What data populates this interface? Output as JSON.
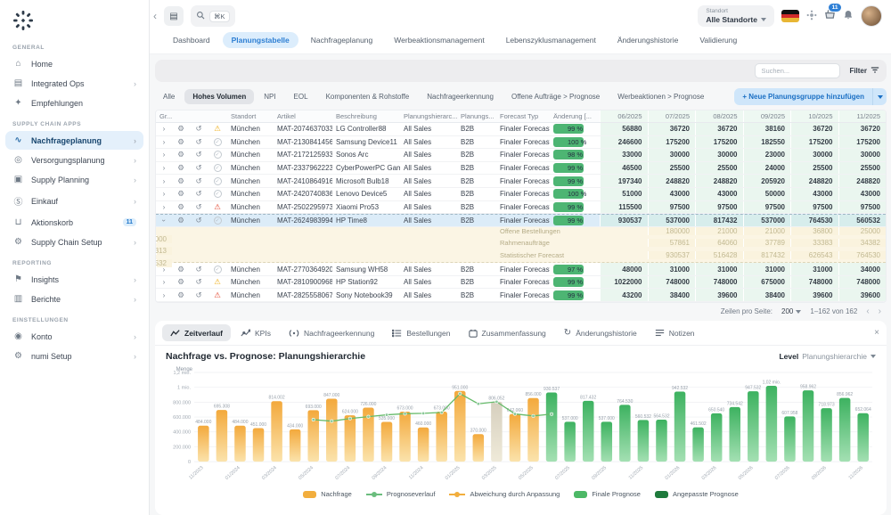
{
  "topbar": {
    "search_shortcut": "⌘K",
    "standort_label": "Standort",
    "standort_value": "Alle Standorte",
    "basket_badge": "11"
  },
  "nav_tabs": [
    {
      "label": "Dashboard",
      "active": false
    },
    {
      "label": "Planungstabelle",
      "active": true
    },
    {
      "label": "Nachfrageplanung",
      "active": false
    },
    {
      "label": "Werbeaktionsmanagement",
      "active": false
    },
    {
      "label": "Lebenszyklusmanagement",
      "active": false
    },
    {
      "label": "Änderungshistorie",
      "active": false
    },
    {
      "label": "Validierung",
      "active": false
    }
  ],
  "sidebar": {
    "sections": [
      {
        "title": "GENERAL",
        "items": [
          {
            "label": "Home",
            "icon": "home"
          },
          {
            "label": "Integrated Ops",
            "icon": "ops",
            "chevron": true
          },
          {
            "label": "Empfehlungen",
            "icon": "reco"
          }
        ]
      },
      {
        "title": "SUPPLY CHAIN APPS",
        "items": [
          {
            "label": "Nachfrageplanung",
            "icon": "demand",
            "chevron": true,
            "active": true
          },
          {
            "label": "Versorgungsplanung",
            "icon": "supply",
            "chevron": true
          },
          {
            "label": "Supply Planning",
            "icon": "planning",
            "chevron": true
          },
          {
            "label": "Einkauf",
            "icon": "purchase",
            "chevron": true
          },
          {
            "label": "Aktionskorb",
            "icon": "basket",
            "badge": "11"
          },
          {
            "label": "Supply Chain Setup",
            "icon": "setup",
            "chevron": true
          }
        ]
      },
      {
        "title": "REPORTING",
        "items": [
          {
            "label": "Insights",
            "icon": "insights",
            "chevron": true
          },
          {
            "label": "Berichte",
            "icon": "reports",
            "chevron": true
          }
        ]
      },
      {
        "title": "EINSTELLUNGEN",
        "items": [
          {
            "label": "Konto",
            "icon": "account",
            "chevron": true
          },
          {
            "label": "numi Setup",
            "icon": "gear",
            "chevron": true
          }
        ]
      }
    ]
  },
  "toolbar": {
    "search_placeholder": "Suchen...",
    "filter_label": "Filter"
  },
  "filter_tabs": [
    {
      "label": "Alle",
      "active": false
    },
    {
      "label": "Hohes Volumen",
      "active": true
    },
    {
      "label": "NPI",
      "active": false
    },
    {
      "label": "EOL",
      "active": false
    },
    {
      "label": "Komponenten & Rohstoffe",
      "active": false
    },
    {
      "label": "Nachfrageerkennung",
      "active": false
    },
    {
      "label": "Offene Aufträge > Prognose",
      "active": false
    },
    {
      "label": "Werbeaktionen > Prognose",
      "active": false
    }
  ],
  "actions": {
    "add_group_label": "+ Neue Planungsgruppe hinzufügen"
  },
  "table": {
    "columns": [
      "Gr...",
      "Standort",
      "Artikel",
      "Beschreibung",
      "Planungshierarc...",
      "Planungs...",
      "Forecast Typ",
      "Änderung [..."
    ],
    "months": [
      "06/2025",
      "07/2025",
      "08/2025",
      "09/2025",
      "10/2025",
      "11/2025"
    ],
    "rows": [
      {
        "status": "warn",
        "standort": "München",
        "artikel": "MAT-207463703311",
        "beschreibung": "LG Controller88",
        "hierarchie": "All Sales",
        "kanal": "B2B",
        "forecast_typ": "Finaler Forecast",
        "aenderung": "99 %",
        "werte": [
          56880,
          36720,
          36720,
          38160,
          36720,
          36720
        ]
      },
      {
        "status": "ok",
        "standort": "München",
        "artikel": "MAT-213084145648",
        "beschreibung": "Samsung Device11",
        "hierarchie": "All Sales",
        "kanal": "B2B",
        "forecast_typ": "Finaler Forecast",
        "aenderung": "100 %",
        "werte": [
          246600,
          175200,
          175200,
          182550,
          175200,
          175200
        ]
      },
      {
        "status": "ok",
        "standort": "München",
        "artikel": "MAT-217212593385",
        "beschreibung": "Sonos Arc",
        "hierarchie": "All Sales",
        "kanal": "B2B",
        "forecast_typ": "Finaler Forecast",
        "aenderung": "98 %",
        "werte": [
          33000,
          30000,
          30000,
          23000,
          30000,
          30000
        ]
      },
      {
        "status": "ok",
        "standort": "München",
        "artikel": "MAT-233796222353",
        "beschreibung": "CyberPowerPC Gamer Su",
        "hierarchie": "All Sales",
        "kanal": "B2B",
        "forecast_typ": "Finaler Forecast",
        "aenderung": "99 %",
        "werte": [
          46500,
          25500,
          25500,
          24000,
          25500,
          25500
        ]
      },
      {
        "status": "ok",
        "standort": "München",
        "artikel": "MAT-241086491608",
        "beschreibung": "Microsoft Bulb18",
        "hierarchie": "All Sales",
        "kanal": "B2B",
        "forecast_typ": "Finaler Forecast",
        "aenderung": "99 %",
        "werte": [
          197340,
          248820,
          248820,
          205920,
          248820,
          248820
        ]
      },
      {
        "status": "ok",
        "standort": "München",
        "artikel": "MAT-242074083675",
        "beschreibung": "Lenovo Device5",
        "hierarchie": "All Sales",
        "kanal": "B2B",
        "forecast_typ": "Finaler Forecast",
        "aenderung": "100 %",
        "werte": [
          51000,
          43000,
          43000,
          50000,
          43000,
          43000
        ]
      },
      {
        "status": "error",
        "standort": "München",
        "artikel": "MAT-250229597325",
        "beschreibung": "Xiaomi Pro53",
        "hierarchie": "All Sales",
        "kanal": "B2B",
        "forecast_typ": "Finaler Forecast",
        "aenderung": "99 %",
        "werte": [
          115500,
          97500,
          97500,
          97500,
          97500,
          97500
        ]
      },
      {
        "status": "ok",
        "expanded": true,
        "selected": true,
        "standort": "München",
        "artikel": "MAT-26249839949",
        "beschreibung": "HP Time8",
        "hierarchie": "All Sales",
        "kanal": "B2B",
        "forecast_typ": "Finaler Forecast",
        "aenderung": "99 %",
        "werte": [
          930537,
          537000,
          817432,
          537000,
          764530,
          560532
        ],
        "subrows": [
          {
            "label": "Offene Bestellungen",
            "werte": [
              180000,
              21000,
              21000,
              36800,
              25000,
              22000
            ]
          },
          {
            "label": "Rahmenaufträge",
            "werte": [
              57861,
              64060,
              37789,
              33383,
              34382,
              27313
            ]
          },
          {
            "label": "Statistischer Forecast",
            "werte": [
              930537,
              516428,
              817432,
              626543,
              764530,
              560532
            ]
          }
        ]
      },
      {
        "status": "ok",
        "standort": "München",
        "artikel": "MAT-277036492039",
        "beschreibung": "Samsung WH58",
        "hierarchie": "All Sales",
        "kanal": "B2B",
        "forecast_typ": "Finaler Forecast",
        "aenderung": "97 %",
        "werte": [
          48000,
          31000,
          31000,
          31000,
          31000,
          34000
        ]
      },
      {
        "status": "warn",
        "standort": "München",
        "artikel": "MAT-281090096832",
        "beschreibung": "HP Station92",
        "hierarchie": "All Sales",
        "kanal": "B2B",
        "forecast_typ": "Finaler Forecast",
        "aenderung": "99 %",
        "werte": [
          1022000,
          748000,
          748000,
          675000,
          748000,
          748000
        ]
      },
      {
        "status": "error",
        "standort": "München",
        "artikel": "MAT-282555806714",
        "beschreibung": "Sony Notebook39",
        "hierarchie": "All Sales",
        "kanal": "B2B",
        "forecast_typ": "Finaler Forecast",
        "aenderung": "99 %",
        "werte": [
          43200,
          38400,
          39600,
          38400,
          39600,
          39600
        ]
      }
    ]
  },
  "pagination": {
    "rows_per_page_label": "Zeilen pro Seite:",
    "rows_per_page_value": "200",
    "range_label": "1–162 von 162"
  },
  "detail_tabs": [
    {
      "label": "Zeitverlauf",
      "icon": "line",
      "active": true
    },
    {
      "label": "KPIs",
      "icon": "kpi",
      "active": false
    },
    {
      "label": "Nachfrageerkennung",
      "icon": "radar",
      "active": false
    },
    {
      "label": "Bestellungen",
      "icon": "list",
      "active": false
    },
    {
      "label": "Zusammenfassung",
      "icon": "calendar",
      "active": false
    },
    {
      "label": "Änderungshistorie",
      "icon": "history",
      "active": false
    },
    {
      "label": "Notizen",
      "icon": "notes",
      "active": false
    }
  ],
  "chart_header": {
    "level_label": "Level",
    "level_value": "Planungshierarchie"
  },
  "chart_data": {
    "type": "bar",
    "title": "Nachfrage vs. Prognose: Planungshierarchie",
    "ylabel": "Menge",
    "ylim": [
      0,
      1200000
    ],
    "grid": true,
    "legend_position": "bottom",
    "yticks": [
      {
        "v": 0,
        "label": "0"
      },
      {
        "v": 200000,
        "label": "200.000"
      },
      {
        "v": 400000,
        "label": "400.000"
      },
      {
        "v": 600000,
        "label": "600.000"
      },
      {
        "v": 800000,
        "label": "800.000"
      },
      {
        "v": 1000000,
        "label": "1 mio."
      },
      {
        "v": 1200000,
        "label": "1,2 mio."
      }
    ],
    "categories": [
      "11/2023",
      "12/2023",
      "01/2024",
      "02/2024",
      "03/2024",
      "04/2024",
      "05/2024",
      "06/2024",
      "07/2024",
      "08/2024",
      "09/2024",
      "10/2024",
      "11/2024",
      "12/2024",
      "01/2025",
      "02/2025",
      "03/2025",
      "04/2025",
      "05/2025",
      "06/2025",
      "07/2025",
      "08/2025",
      "09/2025",
      "10/2025",
      "11/2025",
      "12/2025",
      "01/2026",
      "02/2026",
      "03/2026",
      "04/2026",
      "05/2026",
      "06/2026",
      "07/2026",
      "08/2026",
      "09/2026",
      "10/2026",
      "11/2026"
    ],
    "bars": [
      {
        "m": "11/2023",
        "v": 484000,
        "label": "484.000",
        "s": "nachfrage"
      },
      {
        "m": "12/2023",
        "v": 695308,
        "label": "695.308",
        "s": "nachfrage"
      },
      {
        "m": "01/2024",
        "v": 484000,
        "label": "484.000",
        "s": "nachfrage"
      },
      {
        "m": "02/2024",
        "v": 451000,
        "label": "451.000",
        "s": "nachfrage"
      },
      {
        "m": "03/2024",
        "v": 814002,
        "label": "814.002",
        "s": "nachfrage"
      },
      {
        "m": "04/2024",
        "v": 434000,
        "label": "434.000",
        "s": "nachfrage"
      },
      {
        "m": "05/2024",
        "v": 693000,
        "label": "693.000",
        "s": "nachfrage"
      },
      {
        "m": "06/2024",
        "v": 847000,
        "label": "847.000",
        "s": "nachfrage"
      },
      {
        "m": "07/2024",
        "v": 624000,
        "label": "624.000",
        "s": "nachfrage"
      },
      {
        "m": "08/2024",
        "v": 726000,
        "label": "726.000",
        "s": "nachfrage"
      },
      {
        "m": "09/2024",
        "v": 535000,
        "label": "535.000",
        "s": "nachfrage"
      },
      {
        "m": "10/2024",
        "v": 673000,
        "label": "673.000",
        "s": "nachfrage"
      },
      {
        "m": "11/2024",
        "v": 460000,
        "label": "460.000",
        "s": "nachfrage"
      },
      {
        "m": "12/2024",
        "v": 673000,
        "label": "673.000",
        "s": "nachfrage"
      },
      {
        "m": "01/2025",
        "v": 951000,
        "label": "951.000",
        "s": "nachfrage"
      },
      {
        "m": "02/2025",
        "v": 370000,
        "label": "370.000",
        "s": "nachfrage"
      },
      {
        "m": "03/2025",
        "v": 806052,
        "label": "806.052",
        "s": "abweichung"
      },
      {
        "m": "04/2025",
        "v": 642060,
        "label": "642.060",
        "s": "nachfrage"
      },
      {
        "m": "05/2025",
        "v": 856000,
        "label": "856.000",
        "s": "nachfrage"
      },
      {
        "m": "06/2025",
        "v": 930537,
        "label": "930.537",
        "s": "prognose"
      },
      {
        "m": "07/2025",
        "v": 537000,
        "label": "537.000",
        "s": "prognose"
      },
      {
        "m": "08/2025",
        "v": 817432,
        "label": "817.432",
        "s": "prognose"
      },
      {
        "m": "09/2025",
        "v": 537000,
        "label": "537.000",
        "s": "prognose"
      },
      {
        "m": "10/2025",
        "v": 764530,
        "label": "764.530",
        "s": "prognose"
      },
      {
        "m": "11/2025",
        "v": 560532,
        "label": "560.532",
        "s": "prognose"
      },
      {
        "m": "12/2025",
        "v": 564532,
        "label": "564.532",
        "s": "prognose"
      },
      {
        "m": "01/2026",
        "v": 942532,
        "label": "942.532",
        "s": "prognose"
      },
      {
        "m": "02/2026",
        "v": 461502,
        "label": "461.502",
        "s": "prognose"
      },
      {
        "m": "03/2026",
        "v": 650540,
        "label": "650.540",
        "s": "prognose"
      },
      {
        "m": "04/2026",
        "v": 734542,
        "label": "734.542",
        "s": "prognose"
      },
      {
        "m": "05/2026",
        "v": 947532,
        "label": "947.532",
        "s": "prognose"
      },
      {
        "m": "06/2026",
        "v": 1020000,
        "label": "1,02 mio.",
        "s": "prognose"
      },
      {
        "m": "07/2026",
        "v": 607958,
        "label": "607.958",
        "s": "prognose"
      },
      {
        "m": "08/2026",
        "v": 958962,
        "label": "958.962",
        "s": "prognose"
      },
      {
        "m": "09/2026",
        "v": 718973,
        "label": "718.973",
        "s": "prognose"
      },
      {
        "m": "10/2026",
        "v": 856962,
        "label": "856.962",
        "s": "prognose"
      },
      {
        "m": "11/2026",
        "v": 652064,
        "label": "652.064",
        "s": "prognose"
      }
    ],
    "line_series": {
      "name": "Prognoseverlauf",
      "points": [
        {
          "m": "05/2024",
          "v": 565000
        },
        {
          "m": "06/2024",
          "v": 545000
        },
        {
          "m": "07/2024",
          "v": 580000
        },
        {
          "m": "08/2024",
          "v": 605000
        },
        {
          "m": "09/2024",
          "v": 630000
        },
        {
          "m": "10/2024",
          "v": 645000
        },
        {
          "m": "11/2024",
          "v": 650000
        },
        {
          "m": "12/2024",
          "v": 662000
        },
        {
          "m": "01/2025",
          "v": 915000
        },
        {
          "m": "02/2025",
          "v": 778000
        },
        {
          "m": "03/2025",
          "v": 806000
        },
        {
          "m": "04/2025",
          "v": 642000
        },
        {
          "m": "05/2025",
          "v": 615000
        },
        {
          "m": "06/2025",
          "v": 640000
        }
      ]
    },
    "colors": {
      "nachfrage": "#F2A93B",
      "abweichung": "#D8D0BD",
      "prognose": "#43B45E",
      "angepasst": "#1E7A3C",
      "line": "#66BB6A"
    },
    "legend": [
      {
        "label": "Nachfrage",
        "type": "bar",
        "color": "#F2AE3D"
      },
      {
        "label": "Prognoseverlauf",
        "type": "line",
        "color": "#6BBD7E"
      },
      {
        "label": "Abweichung durch Anpassung",
        "type": "line",
        "color": "#F2AE3D"
      },
      {
        "label": "Finale Prognose",
        "type": "bar",
        "color": "#4CB866"
      },
      {
        "label": "Angepasste Prognose",
        "type": "bar",
        "color": "#1E7A3C"
      }
    ]
  }
}
